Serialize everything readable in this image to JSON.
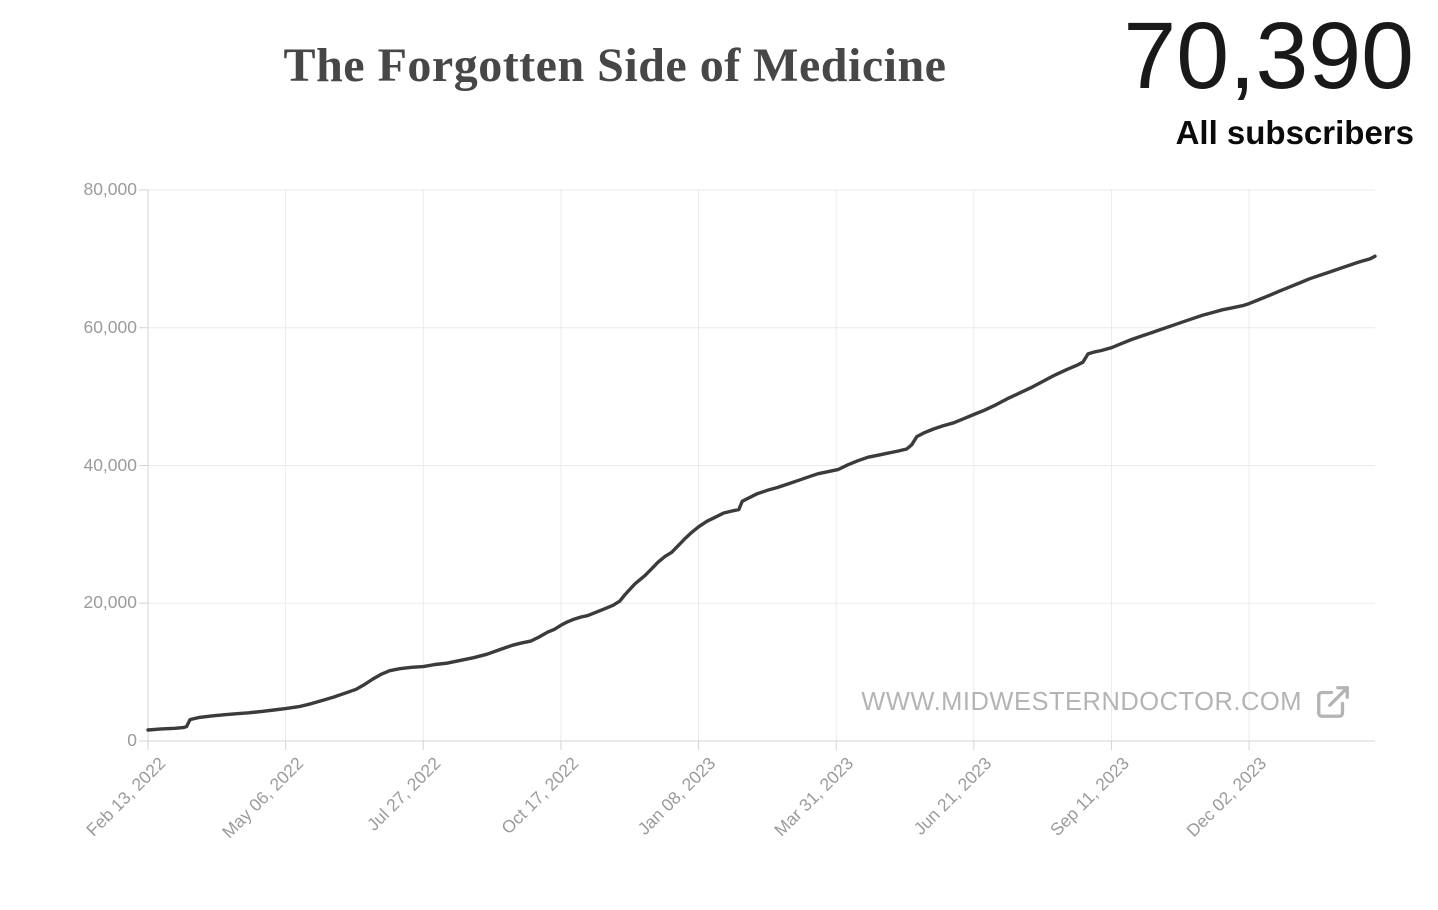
{
  "header": {
    "title": "The Forgotten Side of Medicine",
    "subscriber_count": "70,390",
    "subscriber_label": "All subscribers"
  },
  "watermark": {
    "url_text": "WWW.MIDWESTERNDOCTOR.COM",
    "icon": "external-link-icon"
  },
  "colors": {
    "background": "#ffffff",
    "line": "#3b3b3b",
    "grid": "#ebebeb",
    "axis": "#d4d4d4",
    "tick_label": "#9b9b9b",
    "title": "#474747",
    "count": "#191919",
    "watermark": "#b4b4b4"
  },
  "chart_data": {
    "type": "line",
    "title": "All subscribers over time",
    "xlabel": "",
    "ylabel": "",
    "grid": true,
    "legend": "none",
    "ylim": [
      0,
      80000
    ],
    "y_ticks": [
      0,
      20000,
      40000,
      60000,
      80000
    ],
    "y_tick_labels": [
      "0",
      "20,000",
      "40,000",
      "60,000",
      "80,000"
    ],
    "x_tick_labels": [
      "Feb 13, 2022",
      "May 06, 2022",
      "Jul 27, 2022",
      "Oct 17, 2022",
      "Jan 08, 2023",
      "Mar 31, 2023",
      "Jun 21, 2023",
      "Sep 11, 2023",
      "Dec 02, 2023"
    ],
    "x_tick_days": [
      0,
      82,
      164,
      246,
      328,
      410,
      492,
      574,
      656
    ],
    "x_domain_days": [
      0,
      731
    ],
    "x_unit": "days since Feb 13, 2022",
    "series": [
      {
        "name": "All subscribers",
        "points": [
          [
            0,
            1600
          ],
          [
            8,
            1750
          ],
          [
            16,
            1850
          ],
          [
            21,
            1950
          ],
          [
            23,
            2100
          ],
          [
            25,
            3100
          ],
          [
            30,
            3400
          ],
          [
            38,
            3650
          ],
          [
            45,
            3800
          ],
          [
            52,
            3950
          ],
          [
            60,
            4100
          ],
          [
            68,
            4300
          ],
          [
            75,
            4500
          ],
          [
            82,
            4700
          ],
          [
            90,
            5000
          ],
          [
            97,
            5400
          ],
          [
            104,
            5900
          ],
          [
            111,
            6400
          ],
          [
            118,
            7000
          ],
          [
            124,
            7500
          ],
          [
            129,
            8200
          ],
          [
            134,
            9000
          ],
          [
            139,
            9700
          ],
          [
            144,
            10200
          ],
          [
            150,
            10500
          ],
          [
            157,
            10700
          ],
          [
            164,
            10800
          ],
          [
            171,
            11100
          ],
          [
            178,
            11300
          ],
          [
            186,
            11700
          ],
          [
            194,
            12100
          ],
          [
            202,
            12600
          ],
          [
            210,
            13300
          ],
          [
            217,
            13900
          ],
          [
            222,
            14200
          ],
          [
            228,
            14500
          ],
          [
            233,
            15100
          ],
          [
            238,
            15800
          ],
          [
            242,
            16200
          ],
          [
            246,
            16800
          ],
          [
            250,
            17300
          ],
          [
            254,
            17700
          ],
          [
            258,
            18000
          ],
          [
            262,
            18200
          ],
          [
            267,
            18700
          ],
          [
            272,
            19200
          ],
          [
            277,
            19700
          ],
          [
            281,
            20300
          ],
          [
            284,
            21200
          ],
          [
            287,
            22000
          ],
          [
            290,
            22800
          ],
          [
            293,
            23400
          ],
          [
            296,
            24000
          ],
          [
            300,
            25000
          ],
          [
            304,
            26000
          ],
          [
            308,
            26800
          ],
          [
            312,
            27400
          ],
          [
            316,
            28400
          ],
          [
            320,
            29400
          ],
          [
            324,
            30300
          ],
          [
            328,
            31100
          ],
          [
            333,
            31900
          ],
          [
            338,
            32500
          ],
          [
            343,
            33100
          ],
          [
            348,
            33400
          ],
          [
            352,
            33600
          ],
          [
            354,
            34800
          ],
          [
            358,
            35300
          ],
          [
            363,
            35900
          ],
          [
            369,
            36400
          ],
          [
            375,
            36800
          ],
          [
            381,
            37300
          ],
          [
            387,
            37800
          ],
          [
            393,
            38300
          ],
          [
            399,
            38800
          ],
          [
            405,
            39100
          ],
          [
            411,
            39400
          ],
          [
            417,
            40100
          ],
          [
            423,
            40700
          ],
          [
            429,
            41200
          ],
          [
            435,
            41500
          ],
          [
            441,
            41800
          ],
          [
            447,
            42100
          ],
          [
            452,
            42400
          ],
          [
            455,
            43000
          ],
          [
            458,
            44200
          ],
          [
            462,
            44700
          ],
          [
            468,
            45300
          ],
          [
            474,
            45800
          ],
          [
            480,
            46200
          ],
          [
            486,
            46800
          ],
          [
            492,
            47400
          ],
          [
            498,
            48000
          ],
          [
            505,
            48800
          ],
          [
            512,
            49700
          ],
          [
            519,
            50500
          ],
          [
            526,
            51300
          ],
          [
            533,
            52200
          ],
          [
            540,
            53100
          ],
          [
            547,
            53900
          ],
          [
            553,
            54500
          ],
          [
            557,
            55000
          ],
          [
            560,
            56200
          ],
          [
            564,
            56500
          ],
          [
            568,
            56700
          ],
          [
            574,
            57100
          ],
          [
            580,
            57700
          ],
          [
            586,
            58300
          ],
          [
            592,
            58800
          ],
          [
            598,
            59300
          ],
          [
            604,
            59800
          ],
          [
            610,
            60300
          ],
          [
            616,
            60800
          ],
          [
            622,
            61300
          ],
          [
            628,
            61800
          ],
          [
            634,
            62200
          ],
          [
            640,
            62600
          ],
          [
            646,
            62900
          ],
          [
            652,
            63200
          ],
          [
            656,
            63500
          ],
          [
            662,
            64100
          ],
          [
            668,
            64700
          ],
          [
            674,
            65300
          ],
          [
            680,
            65900
          ],
          [
            686,
            66500
          ],
          [
            692,
            67100
          ],
          [
            698,
            67600
          ],
          [
            704,
            68100
          ],
          [
            710,
            68600
          ],
          [
            716,
            69100
          ],
          [
            721,
            69500
          ],
          [
            725,
            69800
          ],
          [
            728,
            70000
          ],
          [
            731,
            70390
          ]
        ]
      }
    ]
  }
}
